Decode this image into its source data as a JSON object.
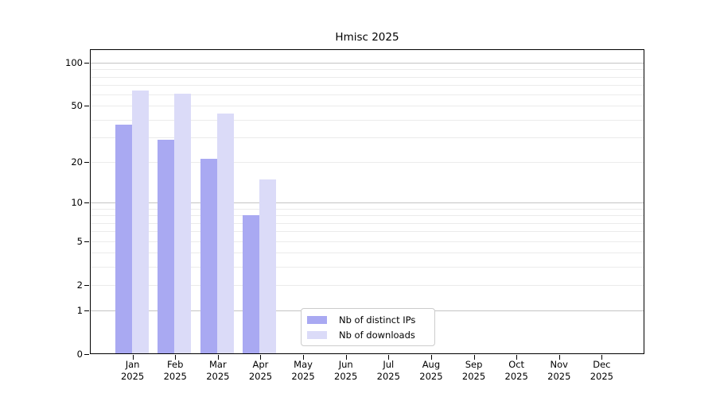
{
  "chart_data": {
    "type": "bar",
    "title": "Hmisc 2025",
    "categories": [
      "Jan",
      "Feb",
      "Mar",
      "Apr",
      "May",
      "Jun",
      "Jul",
      "Aug",
      "Sep",
      "Oct",
      "Nov",
      "Dec"
    ],
    "x_year": "2025",
    "series": [
      {
        "name": "Nb of distinct IPs",
        "color": "#a9a9f2",
        "values": [
          37,
          29,
          21,
          8,
          null,
          null,
          null,
          null,
          null,
          null,
          null,
          null
        ]
      },
      {
        "name": "Nb of downloads",
        "color": "#dbdbf8",
        "values": [
          64,
          61,
          44,
          15,
          null,
          null,
          null,
          null,
          null,
          null,
          null,
          null
        ]
      }
    ],
    "y_axis": {
      "scale": "log1p",
      "tick_labels": [
        0,
        1,
        2,
        5,
        10,
        20,
        50,
        100
      ],
      "major_gridlines": [
        1,
        10,
        100
      ],
      "minor_gridlines": [
        2,
        3,
        4,
        5,
        6,
        7,
        8,
        9,
        20,
        30,
        40,
        50,
        60,
        70,
        80,
        90
      ],
      "range_top": 125
    },
    "legend": {
      "position": "lower center",
      "items": [
        "Nb of distinct IPs",
        "Nb of downloads"
      ]
    },
    "grid": true,
    "colors": {
      "major_grid": "#c4c4c4",
      "minor_grid": "#ebebeb",
      "axis": "#000000"
    }
  }
}
